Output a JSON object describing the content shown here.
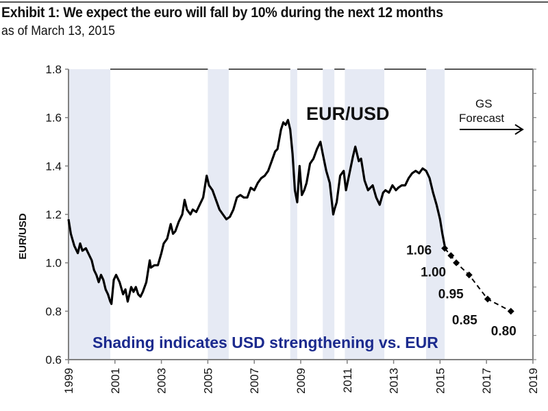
{
  "header": {
    "title": "Exhibit 1:  We expect the euro will fall by 10% during the next 12 months",
    "subtitle": "as of March 13, 2015"
  },
  "chart_data": {
    "type": "line",
    "title": "EUR/USD",
    "xlabel": "",
    "ylabel": "EUR/USD",
    "xlim": [
      1999,
      2019
    ],
    "ylim": [
      0.6,
      1.8
    ],
    "x_ticks": [
      "1999",
      "2001",
      "2003",
      "2005",
      "2007",
      "2009",
      "2011",
      "2013",
      "2015",
      "2017",
      "2019"
    ],
    "y_ticks": [
      "0.6",
      "0.8",
      "1.0",
      "1.2",
      "1.4",
      "1.6",
      "1.8"
    ],
    "grid": false,
    "annotation_note": "Shading indicates USD strengthening vs. EUR",
    "forecast_label": [
      "GS",
      "Forecast"
    ],
    "colors": {
      "line": "#000000",
      "shading": "#e6eaf4",
      "note": "#1b2a8e",
      "axis": "#808080"
    },
    "shaded_periods": [
      [
        1999.0,
        2000.8
      ],
      [
        2005.0,
        2005.9
      ],
      [
        2008.55,
        2008.85
      ],
      [
        2009.95,
        2010.45
      ],
      [
        2010.9,
        2012.6
      ],
      [
        2014.4,
        2015.2
      ]
    ],
    "series": [
      {
        "name": "EUR/USD spot",
        "x": [
          1999.0,
          1999.1,
          1999.25,
          1999.4,
          1999.5,
          1999.6,
          1999.75,
          1999.9,
          2000.0,
          2000.1,
          2000.2,
          2000.3,
          2000.4,
          2000.5,
          2000.6,
          2000.7,
          2000.8,
          2000.85,
          2000.95,
          2001.05,
          2001.2,
          2001.35,
          2001.45,
          2001.55,
          2001.7,
          2001.8,
          2001.9,
          2002.0,
          2002.1,
          2002.2,
          2002.35,
          2002.5,
          2002.55,
          2002.7,
          2002.85,
          2003.0,
          2003.1,
          2003.25,
          2003.4,
          2003.5,
          2003.6,
          2003.75,
          2003.9,
          2004.0,
          2004.1,
          2004.25,
          2004.35,
          2004.5,
          2004.65,
          2004.8,
          2004.95,
          2005.05,
          2005.2,
          2005.35,
          2005.5,
          2005.65,
          2005.8,
          2005.95,
          2006.1,
          2006.25,
          2006.4,
          2006.55,
          2006.7,
          2006.85,
          2007.0,
          2007.15,
          2007.3,
          2007.45,
          2007.6,
          2007.75,
          2007.9,
          2008.0,
          2008.15,
          2008.25,
          2008.35,
          2008.45,
          2008.55,
          2008.65,
          2008.75,
          2008.85,
          2008.95,
          2009.05,
          2009.15,
          2009.25,
          2009.4,
          2009.55,
          2009.7,
          2009.85,
          2009.95,
          2010.1,
          2010.25,
          2010.4,
          2010.45,
          2010.55,
          2010.7,
          2010.85,
          2010.95,
          2011.1,
          2011.25,
          2011.35,
          2011.5,
          2011.6,
          2011.75,
          2011.9,
          2012.0,
          2012.1,
          2012.25,
          2012.4,
          2012.55,
          2012.65,
          2012.8,
          2012.95,
          2013.1,
          2013.2,
          2013.35,
          2013.5,
          2013.65,
          2013.8,
          2013.95,
          2014.1,
          2014.25,
          2014.4,
          2014.55,
          2014.7,
          2014.85,
          2015.0,
          2015.1,
          2015.2
        ],
        "y": [
          1.18,
          1.12,
          1.07,
          1.04,
          1.08,
          1.05,
          1.06,
          1.03,
          1.01,
          0.97,
          0.95,
          0.92,
          0.95,
          0.93,
          0.89,
          0.87,
          0.84,
          0.83,
          0.93,
          0.95,
          0.92,
          0.87,
          0.89,
          0.84,
          0.9,
          0.88,
          0.9,
          0.87,
          0.86,
          0.88,
          0.92,
          1.01,
          0.98,
          0.99,
          0.99,
          1.04,
          1.08,
          1.1,
          1.16,
          1.12,
          1.13,
          1.17,
          1.2,
          1.26,
          1.22,
          1.2,
          1.22,
          1.21,
          1.24,
          1.27,
          1.36,
          1.32,
          1.3,
          1.26,
          1.22,
          1.2,
          1.18,
          1.19,
          1.22,
          1.27,
          1.28,
          1.27,
          1.27,
          1.31,
          1.3,
          1.33,
          1.35,
          1.36,
          1.38,
          1.42,
          1.46,
          1.47,
          1.55,
          1.58,
          1.57,
          1.59,
          1.55,
          1.45,
          1.3,
          1.25,
          1.4,
          1.28,
          1.3,
          1.33,
          1.41,
          1.43,
          1.47,
          1.5,
          1.45,
          1.38,
          1.33,
          1.2,
          1.22,
          1.25,
          1.36,
          1.38,
          1.3,
          1.37,
          1.44,
          1.48,
          1.42,
          1.43,
          1.34,
          1.3,
          1.31,
          1.32,
          1.27,
          1.24,
          1.29,
          1.3,
          1.29,
          1.32,
          1.3,
          1.31,
          1.32,
          1.32,
          1.35,
          1.37,
          1.38,
          1.37,
          1.39,
          1.38,
          1.35,
          1.29,
          1.24,
          1.18,
          1.12,
          1.07
        ]
      },
      {
        "name": "GS Forecast",
        "x": [
          2015.2,
          2015.47,
          2015.7,
          2016.25,
          2017.05,
          2018.05
        ],
        "y": [
          1.06,
          1.03,
          1.0,
          0.95,
          0.85,
          0.8
        ],
        "labels": [
          "1.06",
          "",
          "1.00",
          "0.95",
          "0.85",
          "0.80"
        ]
      }
    ]
  }
}
